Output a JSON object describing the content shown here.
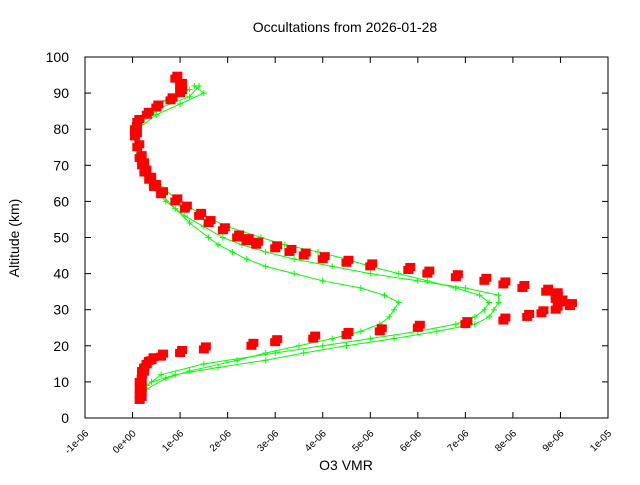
{
  "chart_data": {
    "type": "scatter",
    "title": "Occultations from 2026-01-28",
    "xlabel": "O3 VMR",
    "ylabel": "Altitude (km)",
    "xlim": [
      -1e-06,
      1e-05
    ],
    "ylim": [
      0,
      100
    ],
    "grid": false,
    "x_unit_scale": 1e-06,
    "x_ticks": [
      -1,
      0,
      1,
      2,
      3,
      4,
      5,
      6,
      7,
      8,
      9,
      10
    ],
    "x_tick_labels": [
      "-1e-06",
      "0e+00",
      "1e-06",
      "2e-06",
      "3e-06",
      "4e-06",
      "5e-06",
      "6e-06",
      "7e-06",
      "8e-06",
      "9e-06",
      "1e-05"
    ],
    "y_ticks": [
      0,
      10,
      20,
      30,
      40,
      50,
      60,
      70,
      80,
      90,
      100
    ],
    "y_tick_labels": [
      "0",
      "10",
      "20",
      "30",
      "40",
      "50",
      "60",
      "70",
      "80",
      "90",
      "100"
    ],
    "colors": {
      "red_series": "#ff0000",
      "green_series": "#00ff00"
    },
    "series": [
      {
        "color": "#00ff00",
        "marker": "plus",
        "line": true,
        "points": [
          [
            8,
            0.2
          ],
          [
            10,
            0.4
          ],
          [
            12,
            0.9
          ],
          [
            14,
            1.8
          ],
          [
            16,
            2.8
          ],
          [
            18,
            3.6
          ],
          [
            20,
            4.5
          ],
          [
            22,
            5.5
          ],
          [
            24,
            6.4
          ],
          [
            26,
            7.2
          ],
          [
            28,
            7.5
          ],
          [
            30,
            7.6
          ],
          [
            32,
            7.7
          ],
          [
            34,
            7.7
          ],
          [
            36,
            7.0
          ],
          [
            38,
            6.0
          ],
          [
            40,
            5.0
          ],
          [
            42,
            4.2
          ],
          [
            44,
            3.4
          ],
          [
            46,
            2.8
          ],
          [
            48,
            2.3
          ],
          [
            50,
            1.9
          ],
          [
            53,
            1.5
          ],
          [
            56,
            1.1
          ],
          [
            60,
            0.7
          ],
          [
            64,
            0.4
          ],
          [
            68,
            0.2
          ],
          [
            72,
            0.1
          ],
          [
            76,
            0.05
          ],
          [
            80,
            0.1
          ],
          [
            84,
            0.5
          ],
          [
            87,
            1.0
          ],
          [
            90,
            1.5
          ],
          [
            92,
            1.3
          ]
        ]
      },
      {
        "color": "#00ff00",
        "marker": "plus",
        "line": true,
        "points": [
          [
            8,
            0.3
          ],
          [
            11,
            0.7
          ],
          [
            13,
            1.2
          ],
          [
            16,
            2.2
          ],
          [
            18,
            2.8
          ],
          [
            20,
            3.5
          ],
          [
            22,
            4.2
          ],
          [
            24,
            4.8
          ],
          [
            26,
            5.2
          ],
          [
            28,
            5.4
          ],
          [
            30,
            5.5
          ],
          [
            32,
            5.6
          ],
          [
            34,
            5.3
          ],
          [
            36,
            4.8
          ],
          [
            38,
            4.0
          ],
          [
            40,
            3.4
          ],
          [
            42,
            2.8
          ],
          [
            44,
            2.4
          ],
          [
            46,
            2.1
          ],
          [
            48,
            1.8
          ],
          [
            50,
            1.6
          ],
          [
            54,
            1.2
          ],
          [
            58,
            0.9
          ],
          [
            62,
            0.6
          ],
          [
            66,
            0.35
          ],
          [
            70,
            0.2
          ],
          [
            75,
            0.1
          ],
          [
            80,
            0.1
          ],
          [
            84,
            0.3
          ],
          [
            88,
            0.7
          ],
          [
            91,
            1.2
          ]
        ]
      },
      {
        "color": "#00ff00",
        "marker": "plus",
        "line": true,
        "points": [
          [
            9,
            0.3
          ],
          [
            12,
            0.6
          ],
          [
            15,
            1.5
          ],
          [
            18,
            3.0
          ],
          [
            20,
            4.0
          ],
          [
            22,
            5.0
          ],
          [
            24,
            6.0
          ],
          [
            26,
            6.8
          ],
          [
            28,
            7.2
          ],
          [
            30,
            7.4
          ],
          [
            32,
            7.5
          ],
          [
            34,
            7.3
          ],
          [
            36,
            6.8
          ],
          [
            38,
            6.2
          ],
          [
            40,
            5.6
          ],
          [
            42,
            5.0
          ],
          [
            44,
            4.5
          ],
          [
            46,
            3.9
          ],
          [
            48,
            3.2
          ],
          [
            50,
            2.7
          ],
          [
            53,
            2.0
          ],
          [
            56,
            1.5
          ],
          [
            60,
            1.0
          ],
          [
            64,
            0.6
          ],
          [
            68,
            0.3
          ],
          [
            72,
            0.15
          ],
          [
            78,
            0.05
          ],
          [
            82,
            0.2
          ],
          [
            86,
            0.6
          ],
          [
            89,
            1.2
          ],
          [
            92,
            1.4
          ]
        ]
      },
      {
        "color": "#ff0000",
        "marker": "square",
        "line": false,
        "points": [
          [
            5,
            0.15
          ],
          [
            6.5,
            0.15
          ],
          [
            8,
            0.15
          ],
          [
            10,
            0.15
          ],
          [
            12,
            0.2
          ],
          [
            13,
            0.2
          ],
          [
            14,
            0.25
          ],
          [
            15,
            0.3
          ],
          [
            16,
            0.4
          ],
          [
            17,
            0.6
          ],
          [
            18,
            1.0
          ],
          [
            19,
            1.5
          ],
          [
            20,
            2.5
          ],
          [
            21,
            3.0
          ],
          [
            22,
            3.8
          ],
          [
            23,
            4.5
          ],
          [
            24,
            5.2
          ],
          [
            25,
            6.0
          ],
          [
            26,
            7.0
          ],
          [
            27,
            7.8
          ],
          [
            28,
            8.3
          ],
          [
            29,
            8.6
          ],
          [
            30,
            8.9
          ],
          [
            31,
            9.2
          ],
          [
            32,
            9.0
          ],
          [
            33,
            8.9
          ],
          [
            34,
            8.9
          ],
          [
            35,
            8.7
          ],
          [
            36,
            8.2
          ],
          [
            37,
            7.8
          ],
          [
            38,
            7.4
          ],
          [
            39,
            6.8
          ],
          [
            40,
            6.2
          ],
          [
            41,
            5.8
          ],
          [
            42,
            5.0
          ],
          [
            43,
            4.5
          ],
          [
            44,
            4.0
          ],
          [
            45,
            3.6
          ],
          [
            46,
            3.3
          ],
          [
            47,
            3.0
          ],
          [
            48,
            2.6
          ],
          [
            49,
            2.4
          ],
          [
            50,
            2.2
          ],
          [
            52,
            1.9
          ],
          [
            54,
            1.6
          ],
          [
            56,
            1.4
          ],
          [
            58,
            1.1
          ],
          [
            60,
            0.9
          ],
          [
            62,
            0.6
          ],
          [
            64,
            0.45
          ],
          [
            66,
            0.35
          ],
          [
            68,
            0.25
          ],
          [
            70,
            0.2
          ],
          [
            72,
            0.15
          ],
          [
            75,
            0.1
          ],
          [
            78,
            0.05
          ],
          [
            80,
            0.05
          ],
          [
            82,
            0.1
          ],
          [
            84,
            0.3
          ],
          [
            86,
            0.5
          ],
          [
            88,
            0.8
          ],
          [
            90,
            1.0
          ],
          [
            92,
            1.0
          ],
          [
            94,
            0.9
          ]
        ]
      }
    ]
  }
}
